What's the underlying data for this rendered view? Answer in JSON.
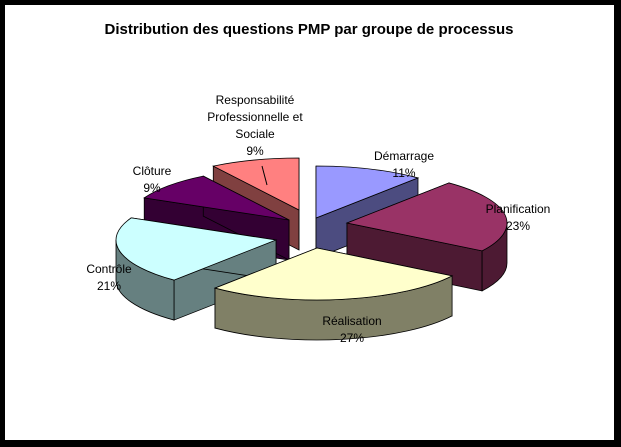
{
  "chart_data": {
    "type": "pie",
    "style": "3d-exploded",
    "title": "Distribution des questions PMP par groupe de processus",
    "slices": [
      {
        "label_lines": [
          "Démarrage"
        ],
        "value": 11,
        "value_label": "11%",
        "top_color": "#9999ff",
        "side_color": "#4c4c80"
      },
      {
        "label_lines": [
          "Planification"
        ],
        "value": 23,
        "value_label": "23%",
        "top_color": "#993366",
        "side_color": "#4d1a33"
      },
      {
        "label_lines": [
          "Réalisation"
        ],
        "value": 27,
        "value_label": "27%",
        "top_color": "#ffffcc",
        "side_color": "#808066"
      },
      {
        "label_lines": [
          "Contrôle"
        ],
        "value": 21,
        "value_label": "21%",
        "top_color": "#ccffff",
        "side_color": "#668080"
      },
      {
        "label_lines": [
          "Clôture"
        ],
        "value": 9,
        "value_label": "9%",
        "top_color": "#660066",
        "side_color": "#330033"
      },
      {
        "label_lines": [
          "Responsabilité",
          "Professionnelle et",
          "Sociale"
        ],
        "value": 9,
        "value_label": "9%",
        "top_color": "#ff8080",
        "side_color": "#804040"
      }
    ]
  }
}
